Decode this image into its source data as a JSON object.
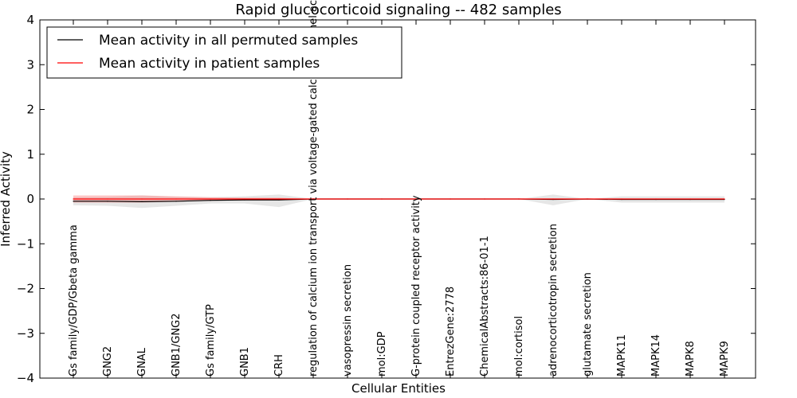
{
  "chart_data": {
    "type": "line",
    "title": "Rapid glucocorticoid signaling -- 482 samples",
    "xlabel": "Cellular Entities",
    "ylabel": "Inferred Activity",
    "ylim": [
      -4,
      4
    ],
    "yticks": [
      "−4",
      "−3",
      "−2",
      "−1",
      "0",
      "1",
      "2",
      "3",
      "4"
    ],
    "grid": false,
    "legend_position": "top-left",
    "categories": [
      "Gs family/GDP/Gbeta gamma",
      "GNG2",
      "GNAL",
      "GNB1/GNG2",
      "Gs family/GTP",
      "GNB1",
      "CRH",
      "regulation of calcium ion transport via voltage-gated calcium channel activity",
      "vasopressin secretion",
      "mol:GDP",
      "G-protein coupled receptor activity",
      "EntrezGene:2778",
      "ChemicalAbstracts:86-01-1",
      "mol:cortisol",
      "adrenocorticotropin secretion",
      "glutamate secretion",
      "MAPK11",
      "MAPK14",
      "MAPK8",
      "MAPK9"
    ],
    "series": [
      {
        "name": "Mean activity in all permuted samples",
        "color": "#000000",
        "values": [
          -0.05,
          -0.05,
          -0.06,
          -0.05,
          -0.03,
          -0.02,
          -0.02,
          0.0,
          0.0,
          0.0,
          0.0,
          0.0,
          0.0,
          0.0,
          -0.01,
          0.0,
          -0.01,
          -0.01,
          -0.01,
          -0.01
        ],
        "band_upper": [
          0.04,
          0.05,
          0.08,
          0.05,
          0.04,
          0.06,
          0.1,
          0.0,
          0.0,
          0.0,
          0.0,
          0.0,
          0.0,
          0.0,
          0.1,
          0.0,
          0.06,
          0.06,
          0.06,
          0.06
        ],
        "band_lower": [
          -0.14,
          -0.15,
          -0.2,
          -0.15,
          -0.1,
          -0.1,
          -0.18,
          0.0,
          0.0,
          0.0,
          0.0,
          0.0,
          0.0,
          0.0,
          -0.14,
          0.0,
          -0.08,
          -0.08,
          -0.08,
          -0.08
        ]
      },
      {
        "name": "Mean activity in patient samples",
        "color": "#ff0000",
        "values": [
          0.0,
          0.0,
          0.0,
          0.0,
          0.0,
          0.0,
          0.0,
          0.0,
          0.0,
          0.0,
          0.0,
          0.0,
          0.0,
          0.0,
          0.0,
          0.0,
          0.0,
          0.0,
          0.0,
          0.0
        ],
        "band_upper": [
          0.08,
          0.08,
          0.08,
          0.06,
          0.04,
          0.03,
          0.03,
          0.0,
          0.0,
          0.0,
          0.0,
          0.0,
          0.0,
          0.0,
          0.0,
          0.0,
          0.01,
          0.01,
          0.01,
          0.01
        ],
        "band_lower": [
          -0.08,
          -0.08,
          -0.08,
          -0.06,
          -0.04,
          -0.03,
          -0.03,
          0.0,
          0.0,
          0.0,
          0.0,
          0.0,
          0.0,
          0.0,
          0.0,
          0.0,
          -0.01,
          -0.01,
          -0.01,
          -0.01
        ]
      }
    ]
  }
}
